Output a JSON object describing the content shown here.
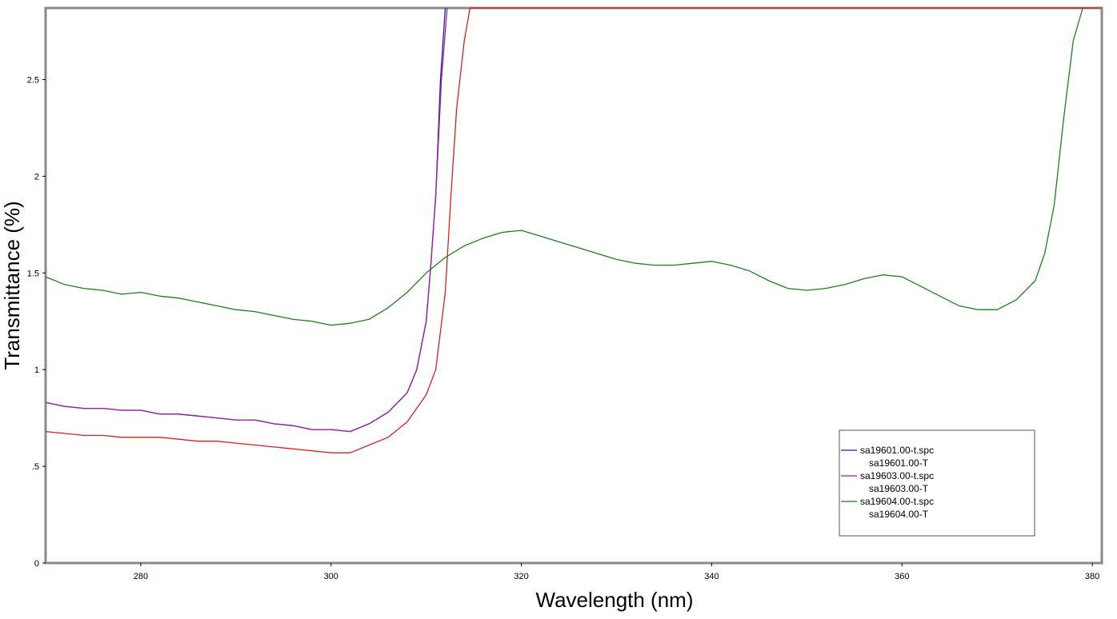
{
  "chart_data": {
    "type": "line",
    "title": "",
    "xlabel": "Wavelength (nm)",
    "ylabel": "Transmittance (%)",
    "xlim": [
      270,
      381
    ],
    "ylim": [
      0,
      2.87
    ],
    "x_ticks": [
      280,
      300,
      320,
      340,
      360,
      380
    ],
    "y_ticks": [
      0,
      0.5,
      1,
      1.5,
      2,
      2.5
    ],
    "y_tick_labels": [
      "0",
      ".5",
      "1",
      "1.5",
      "2",
      "2.5"
    ],
    "grid": false,
    "legend_position": "bottom-right",
    "series": [
      {
        "name": "sa19601.00-t.spc",
        "subtitle": "sa19601.00-T",
        "color": "#1f1f9f",
        "x": [
          270,
          272,
          274,
          276,
          278,
          280,
          282,
          284,
          286,
          288,
          290,
          292,
          294,
          296,
          298,
          300,
          302,
          304,
          306,
          308,
          309,
          310,
          310.5,
          311,
          311.5,
          312
        ],
        "y": [
          0.83,
          0.81,
          0.8,
          0.8,
          0.79,
          0.79,
          0.77,
          0.77,
          0.76,
          0.75,
          0.74,
          0.74,
          0.72,
          0.71,
          0.69,
          0.69,
          0.68,
          0.72,
          0.78,
          0.88,
          1.0,
          1.25,
          1.55,
          1.9,
          2.5,
          2.87
        ]
      },
      {
        "name": "sa19603.00-t.spc",
        "subtitle": "sa19603.00-T",
        "color": "#9f1f9f",
        "x": [
          270,
          272,
          274,
          276,
          278,
          280,
          282,
          284,
          286,
          288,
          290,
          292,
          294,
          296,
          298,
          300,
          302,
          304,
          306,
          308,
          309,
          310,
          310.5,
          311,
          311.6,
          312.2
        ],
        "y": [
          0.83,
          0.81,
          0.8,
          0.8,
          0.79,
          0.79,
          0.77,
          0.77,
          0.76,
          0.75,
          0.74,
          0.74,
          0.72,
          0.71,
          0.69,
          0.69,
          0.68,
          0.72,
          0.78,
          0.88,
          1.0,
          1.25,
          1.55,
          1.9,
          2.5,
          2.87
        ]
      },
      {
        "name": "sa19604.00-t.spc",
        "subtitle": "sa19604.00-T",
        "color": "#1f7f1f",
        "x": [
          270,
          272,
          274,
          276,
          278,
          280,
          282,
          284,
          286,
          288,
          290,
          292,
          294,
          296,
          298,
          300,
          302,
          304,
          306,
          308,
          310,
          312,
          314,
          316,
          318,
          320,
          322,
          324,
          326,
          328,
          330,
          332,
          334,
          336,
          338,
          340,
          342,
          344,
          346,
          348,
          350,
          352,
          354,
          356,
          358,
          360,
          362,
          364,
          366,
          368,
          370,
          372,
          374,
          375,
          376,
          377,
          378,
          379
        ],
        "y": [
          1.48,
          1.44,
          1.42,
          1.41,
          1.39,
          1.4,
          1.38,
          1.37,
          1.35,
          1.33,
          1.31,
          1.3,
          1.28,
          1.26,
          1.25,
          1.23,
          1.24,
          1.26,
          1.32,
          1.4,
          1.5,
          1.58,
          1.64,
          1.68,
          1.71,
          1.72,
          1.69,
          1.66,
          1.63,
          1.6,
          1.57,
          1.55,
          1.54,
          1.54,
          1.55,
          1.56,
          1.54,
          1.51,
          1.46,
          1.42,
          1.41,
          1.42,
          1.44,
          1.47,
          1.49,
          1.48,
          1.43,
          1.38,
          1.33,
          1.31,
          1.31,
          1.36,
          1.46,
          1.6,
          1.85,
          2.3,
          2.7,
          2.87
        ]
      },
      {
        "name": "",
        "subtitle": "",
        "color": "#dd1f1f",
        "x": [
          270,
          272,
          274,
          276,
          278,
          280,
          282,
          284,
          286,
          288,
          290,
          292,
          294,
          296,
          298,
          300,
          302,
          304,
          306,
          308,
          310,
          311,
          312,
          312.6,
          313.2,
          314,
          314.6,
          381
        ],
        "y": [
          0.68,
          0.67,
          0.66,
          0.66,
          0.65,
          0.65,
          0.65,
          0.64,
          0.63,
          0.63,
          0.62,
          0.61,
          0.6,
          0.59,
          0.58,
          0.57,
          0.57,
          0.61,
          0.65,
          0.73,
          0.87,
          1.0,
          1.4,
          1.9,
          2.35,
          2.7,
          2.87,
          2.87
        ]
      }
    ]
  }
}
